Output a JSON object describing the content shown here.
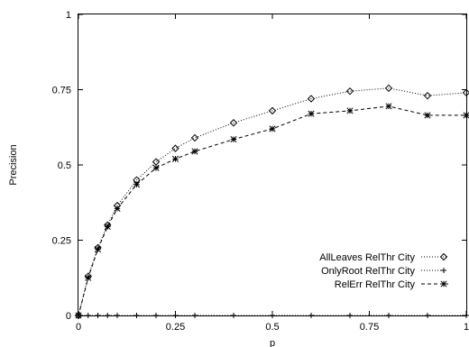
{
  "chart_data": {
    "type": "line",
    "title": "",
    "xlabel": "p",
    "ylabel": "Precision",
    "xlim": [
      0,
      1
    ],
    "ylim": [
      0,
      1
    ],
    "x_ticks": [
      "0",
      "0.25",
      "0.5",
      "0.75",
      "1"
    ],
    "y_ticks": [
      "0",
      "0.25",
      "0.5",
      "0.75",
      "1"
    ],
    "grid": false,
    "legend_position": "bottom-right",
    "series": [
      {
        "name": "AllLeaves RelThr City",
        "marker": "diamond",
        "line_style": "dotted",
        "x": [
          0,
          0.025,
          0.05,
          0.075,
          0.1,
          0.15,
          0.2,
          0.25,
          0.3,
          0.4,
          0.5,
          0.6,
          0.7,
          0.8,
          0.9,
          1.0
        ],
        "y": [
          0.0,
          0.13,
          0.225,
          0.3,
          0.365,
          0.45,
          0.51,
          0.555,
          0.59,
          0.64,
          0.68,
          0.72,
          0.745,
          0.755,
          0.73,
          0.74
        ]
      },
      {
        "name": "OnlyRoot RelThr City",
        "marker": "plus",
        "line_style": "dotted",
        "x": [
          0,
          0.025,
          0.05,
          0.075,
          0.1,
          0.15,
          0.2,
          0.25,
          0.3,
          0.4,
          0.5,
          0.6,
          0.7,
          0.8,
          0.9,
          1.0
        ],
        "y": [
          0,
          0,
          0,
          0,
          0,
          0,
          0,
          0,
          0,
          0,
          0,
          0,
          0,
          0,
          0,
          0
        ]
      },
      {
        "name": "RelErr RelThr City",
        "marker": "star",
        "line_style": "dashed",
        "x": [
          0,
          0.025,
          0.05,
          0.075,
          0.1,
          0.15,
          0.2,
          0.25,
          0.3,
          0.4,
          0.5,
          0.6,
          0.7,
          0.8,
          0.9,
          1.0
        ],
        "y": [
          0.0,
          0.125,
          0.22,
          0.295,
          0.355,
          0.435,
          0.49,
          0.52,
          0.545,
          0.585,
          0.62,
          0.67,
          0.68,
          0.695,
          0.665,
          0.665
        ]
      }
    ]
  }
}
